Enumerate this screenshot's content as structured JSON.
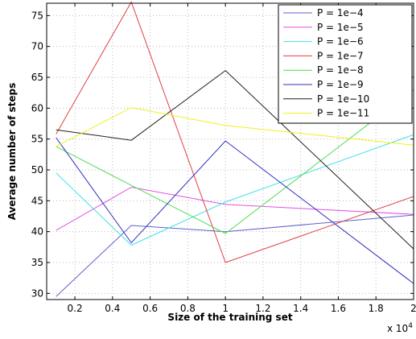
{
  "chart_data": {
    "type": "line",
    "title": "",
    "xlabel": "Size of the training set",
    "ylabel": "Average number of steps",
    "x_exponent_label": "x 10",
    "x_exponent_power": "4",
    "x": [
      0.1,
      0.5,
      1.0,
      2.0
    ],
    "xlim": [
      0.05,
      2.0
    ],
    "ylim": [
      29,
      77
    ],
    "x_ticks": [
      "0.2",
      "0.4",
      "0.6",
      "0.8",
      "1",
      "1.2",
      "1.4",
      "1.6",
      "1.8",
      "2"
    ],
    "y_ticks": [
      "30",
      "35",
      "40",
      "45",
      "50",
      "55",
      "60",
      "65",
      "70",
      "75"
    ],
    "grid": true,
    "legend_position": "top-right",
    "series": [
      {
        "name": "P = 1e−4",
        "color": "#6060cc",
        "values": [
          29.5,
          41.0,
          40.0,
          42.7
        ]
      },
      {
        "name": "P = 1e−5",
        "color": "#e050e0",
        "values": [
          40.2,
          47.2,
          44.4,
          42.8
        ]
      },
      {
        "name": "P = 1e−6",
        "color": "#40e0e8",
        "values": [
          49.5,
          37.8,
          44.8,
          55.7
        ]
      },
      {
        "name": "P = 1e−7",
        "color": "#e04040",
        "values": [
          55.8,
          77.2,
          35.0,
          45.7
        ]
      },
      {
        "name": "P = 1e−8",
        "color": "#50dd50",
        "values": [
          53.8,
          47.5,
          39.7,
          63.0
        ]
      },
      {
        "name": "P = 1e−9",
        "color": "#3030c0",
        "values": [
          55.2,
          38.2,
          54.7,
          31.6
        ]
      },
      {
        "name": "P = 1e−10",
        "color": "#202020",
        "values": [
          56.5,
          54.8,
          66.1,
          37.2
        ]
      },
      {
        "name": "P = 1e−11",
        "color": "#f0f020",
        "values": [
          53.8,
          60.1,
          57.2,
          54.0
        ]
      }
    ]
  }
}
